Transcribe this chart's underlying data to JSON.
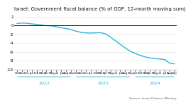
{
  "title": "Israel: Government fiscal balance (% of GDP, 12-month moving sum)",
  "title_fontsize": 5.0,
  "ylim": [
    -10,
    3
  ],
  "yticks": [
    2,
    0,
    -2,
    -4,
    -6,
    -8,
    -10
  ],
  "line_color": "#29b5d8",
  "line_width": 1.0,
  "zero_line_color": "#000000",
  "background_color": "#ffffff",
  "source_text": "Source: Israel Finance Ministry",
  "x_labels": [
    "Oct",
    "Nov",
    "Dec",
    "Jan",
    "Feb",
    "Mar",
    "Apr",
    "May",
    "Jun",
    "Jul",
    "Aug",
    "Sep",
    "Oct",
    "Nov",
    "Dec",
    "Jan",
    "Feb",
    "Mar",
    "Apr",
    "May",
    "Jun",
    "Jul",
    "Aug",
    "Sep",
    "Jan",
    "Feb",
    "Mar",
    "Apr",
    "May",
    "Jun",
    "Jul",
    "Aug",
    "Sep"
  ],
  "year_labels": [
    [
      "2022",
      5.5
    ],
    [
      "2023",
      17.5
    ],
    [
      "2024",
      25.5
    ]
  ],
  "values": [
    0.45,
    0.55,
    0.5,
    0.35,
    0.25,
    0.1,
    -0.05,
    -0.1,
    -0.3,
    -0.5,
    -0.7,
    -0.9,
    -1.3,
    -1.55,
    -1.7,
    -1.72,
    -1.68,
    -1.65,
    -1.9,
    -2.65,
    -3.45,
    -4.3,
    -5.1,
    -5.85,
    -6.35,
    -6.8,
    -7.15,
    -7.4,
    -7.55,
    -7.65,
    -7.75,
    -8.55,
    -8.75
  ],
  "n_xticks": 33,
  "year_line_color": "#29b5d8",
  "year_label_color": "#29b5d8",
  "year_label_fontsize": 4.5,
  "grid_color": "#dddddd",
  "spine_color": "#aaaaaa"
}
